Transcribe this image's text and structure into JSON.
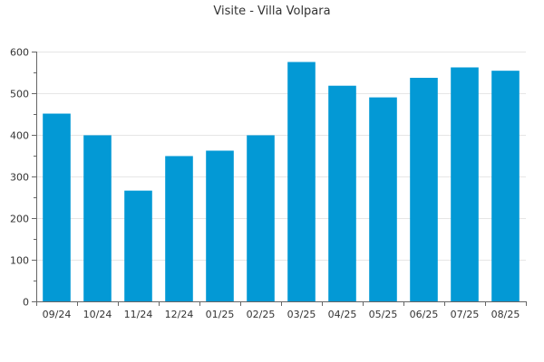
{
  "chart_data": {
    "type": "bar",
    "title": "Visite - Villa Volpara",
    "xlabel": "",
    "ylabel": "",
    "categories": [
      "09/24",
      "10/24",
      "11/24",
      "12/24",
      "01/25",
      "02/25",
      "03/25",
      "04/25",
      "05/25",
      "06/25",
      "07/25",
      "08/25"
    ],
    "values": [
      451,
      399,
      266,
      349,
      362,
      399,
      575,
      518,
      490,
      537,
      562,
      554
    ],
    "ylim": [
      0,
      600
    ],
    "yticks": [
      0,
      100,
      200,
      300,
      400,
      500,
      600
    ],
    "grid": true,
    "legend": "none",
    "colors": {
      "bar": "#0399d5",
      "grid": "#e6e6e6",
      "axis": "#666666",
      "text": "#333333"
    }
  }
}
